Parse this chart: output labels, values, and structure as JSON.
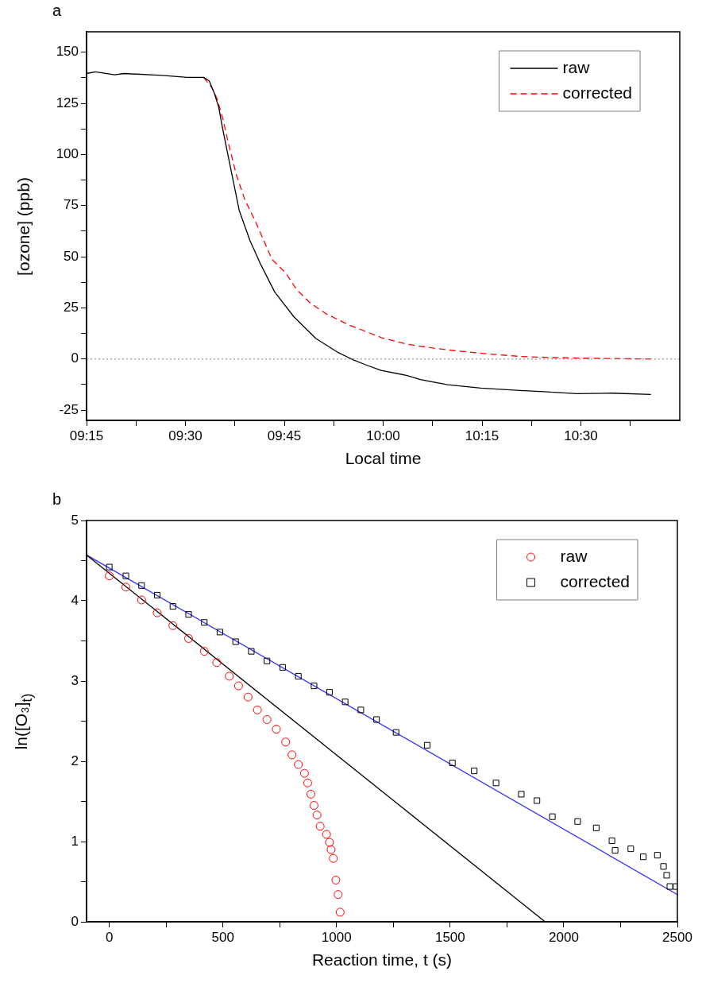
{
  "chart_data": [
    {
      "type": "line",
      "title": "a",
      "xlabel": "Local time",
      "ylabel": "[ozone] (ppb)",
      "legend": "top right",
      "xlim": [
        9.25,
        10.75
      ],
      "ylim": [
        -30,
        160
      ],
      "xticks": [
        {
          "value": 9.25,
          "label": "09:15"
        },
        {
          "value": 9.375,
          "label": null
        },
        {
          "value": 9.5,
          "label": "09:30"
        },
        {
          "value": 9.625,
          "label": null
        },
        {
          "value": 9.75,
          "label": "09:45"
        },
        {
          "value": 9.875,
          "label": null
        },
        {
          "value": 10,
          "label": "10:00"
        },
        {
          "value": 10.125,
          "label": null
        },
        {
          "value": 10.25,
          "label": "10:15"
        },
        {
          "value": 10.375,
          "label": null
        },
        {
          "value": 10.5,
          "label": "10:30"
        },
        {
          "value": 10.625,
          "label": null
        }
      ],
      "yticks": [
        -25,
        {
          "value": -12.5,
          "label": null
        },
        0,
        {
          "value": 12.5,
          "label": null
        },
        25,
        {
          "value": 37.5,
          "label": null
        },
        50,
        {
          "value": 62.5,
          "label": null
        },
        75,
        {
          "value": 87.5,
          "label": null
        },
        100,
        {
          "value": 112.5,
          "label": null
        },
        125,
        {
          "value": 137.5,
          "label": null
        },
        150
      ],
      "ref_lines": [
        {
          "axis": "y",
          "value": 0,
          "color": "#808080",
          "line_style": "dotted"
        }
      ],
      "series": [
        {
          "name": "raw",
          "color": "#000000",
          "line_style": "solid",
          "x": [
            9.25,
            9.272,
            9.321,
            9.345,
            9.442,
            9.504,
            9.546,
            9.56,
            9.573,
            9.584,
            9.594,
            9.608,
            9.622,
            9.636,
            9.663,
            9.691,
            9.726,
            9.774,
            9.83,
            9.885,
            9.92,
            9.954,
            9.995,
            10.059,
            10.094,
            10.163,
            10.247,
            10.337,
            10.406,
            10.49,
            10.58,
            10.677
          ],
          "values": [
            139.6,
            140.4,
            139,
            139.6,
            138.7,
            137.7,
            137.7,
            136,
            130,
            123.3,
            112.7,
            99.3,
            86,
            72.7,
            58,
            46,
            32.7,
            20.7,
            10,
            3.3,
            0,
            -2.7,
            -5.6,
            -8,
            -10,
            -12.6,
            -14.2,
            -15.3,
            -16,
            -16.9,
            -16.7,
            -17.3
          ]
        },
        {
          "name": "corrected",
          "color": "#ff0000",
          "line_style": "dashed",
          "x": [
            9.546,
            9.567,
            9.58,
            9.594,
            9.608,
            9.629,
            9.65,
            9.677,
            9.719,
            9.754,
            9.781,
            9.816,
            9.857,
            9.913,
            9.995,
            10.059,
            10.128,
            10.184,
            10.253,
            10.344,
            10.427,
            10.51,
            10.677
          ],
          "values": [
            137.7,
            132.7,
            127.3,
            118,
            106,
            90,
            78,
            67.3,
            48.7,
            42,
            34,
            27.3,
            22,
            16.7,
            10.5,
            7.3,
            5.3,
            4,
            2.7,
            1.3,
            0.7,
            0.4,
            0
          ]
        }
      ]
    },
    {
      "type": "scatter",
      "title": "b",
      "xlabel": "Reaction time, t (s)",
      "ylabel": "ln([O₃]$_{t)}$",
      "legend": "top right",
      "xlim": [
        -100,
        2500
      ],
      "ylim": [
        0,
        5
      ],
      "xticks": [
        0,
        {
          "value": 250,
          "label": null
        },
        500,
        {
          "value": 750,
          "label": null
        },
        1000,
        {
          "value": 1250,
          "label": null
        },
        1500,
        {
          "value": 1750,
          "label": null
        },
        2000,
        {
          "value": 2250,
          "label": null
        },
        2500
      ],
      "yticks": [
        0,
        {
          "value": 0.5,
          "label": null
        },
        1,
        {
          "value": 1.5,
          "label": null
        },
        2,
        {
          "value": 2.5,
          "label": null
        },
        3,
        {
          "value": 3.5,
          "label": null
        },
        4,
        {
          "value": 4.5,
          "label": null
        },
        5
      ],
      "series": [
        {
          "name": "raw",
          "color": "#ff0000",
          "marker": "circle",
          "x": [
            0,
            73,
            142,
            211,
            280,
            349,
            418,
            473,
            528,
            569,
            611,
            652,
            694,
            735,
            776,
            804,
            832,
            859,
            873,
            887,
            901,
            914,
            928,
            956,
            969,
            976,
            986,
            997,
            1007,
            1016
          ],
          "values": [
            4.31,
            4.17,
            4.01,
            3.85,
            3.69,
            3.53,
            3.37,
            3.23,
            3.06,
            2.94,
            2.8,
            2.64,
            2.52,
            2.4,
            2.24,
            2.08,
            1.96,
            1.85,
            1.73,
            1.59,
            1.45,
            1.33,
            1.19,
            1.09,
            0.99,
            0.9,
            0.79,
            0.52,
            0.34,
            0.12
          ]
        },
        {
          "name": "corrected",
          "color": "#000000",
          "marker": "square",
          "x": [
            0,
            73,
            142,
            211,
            280,
            349,
            418,
            487,
            556,
            625,
            694,
            763,
            832,
            901,
            969,
            1038,
            1107,
            1176,
            1262,
            1399,
            1510,
            1606,
            1702,
            1813,
            1882,
            1950,
            2061,
            2143,
            2212,
            2226,
            2295,
            2350,
            2412,
            2439,
            2453,
            2467,
            2494
          ],
          "values": [
            4.42,
            4.31,
            4.19,
            4.07,
            3.93,
            3.83,
            3.73,
            3.61,
            3.49,
            3.37,
            3.25,
            3.17,
            3.06,
            2.94,
            2.86,
            2.74,
            2.64,
            2.52,
            2.36,
            2.2,
            1.98,
            1.88,
            1.73,
            1.59,
            1.51,
            1.31,
            1.25,
            1.17,
            1.01,
            0.89,
            0.91,
            0.81,
            0.83,
            0.69,
            0.58,
            0.44,
            0.44
          ]
        },
        {
          "type": "line",
          "color": "#000000",
          "x": [
            -100,
            1918
          ],
          "values": [
            4.57,
            0
          ]
        },
        {
          "type": "line",
          "color": "#3333ff",
          "x": [
            -100,
            2500
          ],
          "values": [
            4.57,
            0.34
          ]
        }
      ]
    }
  ]
}
